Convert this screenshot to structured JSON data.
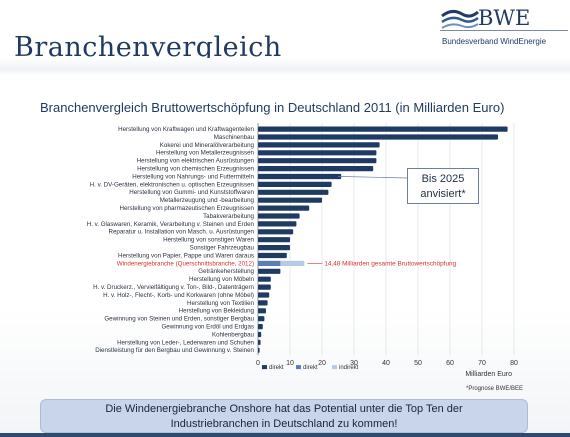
{
  "slide": {
    "title": "Branchenvergleich",
    "logo_word": "BWE",
    "logo_subtitle": "Bundesverband WindEnergie",
    "callout_line1": "Bis 2025",
    "callout_line2": "anvisiert*",
    "source_note": "*Prognose BWE/BEE",
    "banner_line1": "Die Windenergiebranche Onshore hat das Potential unter die Top Ten der",
    "banner_line2": "Industriebranchen in Deutschland zu kommen!"
  },
  "colors": {
    "navy": "#1f3b63",
    "bar": "#1f3b63",
    "highlight_text": "#d9322b",
    "wind_direct": "#5a7fb8",
    "wind_indirect": "#b7c9e6",
    "banner": "#c9d5ea"
  },
  "chart_data": {
    "type": "bar",
    "orientation": "horizontal",
    "title": "Branchenvergleich Bruttowertschöpfung in Deutschland 2011 (in Milliarden Euro)",
    "xlabel": "Milliarden Euro",
    "xlim": [
      0,
      80
    ],
    "xticks": [
      "0",
      "10",
      "20",
      "30",
      "40",
      "50",
      "60",
      "70",
      "80"
    ],
    "grid": true,
    "legend": [
      "direkt",
      "direkt",
      "indirekt"
    ],
    "categories": [
      "Herstellung von Kraftwagen und Kraftwagenteilen",
      "Maschinenbau",
      "Kokerei und Mineralölverarbeitung",
      "Herstellung von Metallerzeugnissen",
      "Herstellung von elektrischen Ausrüstungen",
      "Herstellung von chemischen Erzeugnissen",
      "Herstellung von Nahrungs- und Futtermitteln",
      "H. v. DV-Geräten, elektronischen u. optischen Erzeugnissen",
      "Herstellung von Gummi- und Kunststoffwaren",
      "Metallerzeugung und -bearbeitung",
      "Herstellung von pharmazeutischen Erzeugnissen",
      "Tabakverarbeitung",
      "H. v. Glaswaren, Keramik, Verarbeitung v. Steinen und Erden",
      "Reparatur u. Installation von Masch. u. Ausrüstungen",
      "Herstellung von sonstigen Waren",
      "Sonstiger Fahrzeugbau",
      "Herstellung von Papier, Pappe und Waren daraus",
      "Windenergiebranche (Querschnittsbranche, 2012)",
      "Getränkeherstellung",
      "Herstellung von Möbeln",
      "H. v. Druckerz., Vervielfältigung v. Ton-, Bild-, Datenträgern",
      "H. v. Holz-, Flecht-, Korb- und Korkwaren (ohne Möbel)",
      "Herstellung von Textilien",
      "Herstellung von Bekleidung",
      "Gewinnung von Steinen und Erden, sonstiger Bergbau",
      "Gewinnung von Erdöl und Erdgas",
      "Kohlenbergbau",
      "Herstellung von Leder-, Lederwaren und Schuhen",
      "Dienstleistung für den Bergbau und Gewinnung v. Steinen"
    ],
    "highlight_index": 17,
    "values": [
      78,
      75,
      38,
      37,
      37,
      36,
      26,
      23,
      22,
      20,
      16,
      13,
      12,
      11,
      10,
      10,
      9,
      14.48,
      7,
      4,
      4,
      3.5,
      3,
      2.5,
      2,
      1.5,
      1,
      0.8,
      0.5
    ],
    "wind_segments": {
      "direkt": 7.0,
      "indirekt": 7.48
    },
    "wind_target_2025": 25,
    "wind_annotation": "14,48 Milliarden gesamte Bruttowertschöpfung"
  }
}
